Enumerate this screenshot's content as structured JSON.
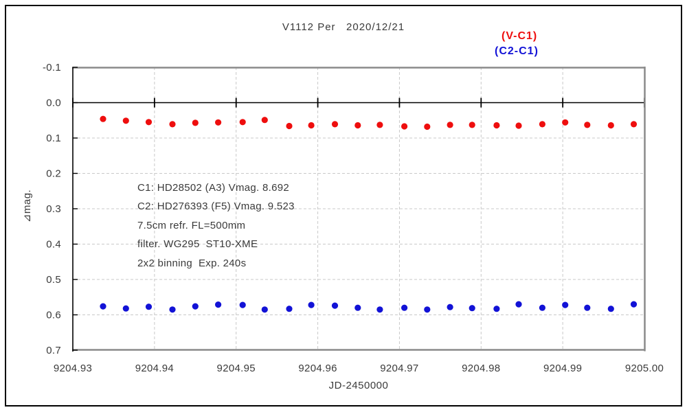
{
  "window": {
    "title": "V1112 Per   2020/12/21"
  },
  "legend": {
    "items": [
      {
        "label": "(V-C1)",
        "color": "#ee0e0e"
      },
      {
        "label": "(C2-C1)",
        "color": "#1212d6"
      }
    ]
  },
  "annotation": {
    "lines": [
      "C1: HD28502 (A3) Vmag. 8.692",
      "C2: HD276393 (F5) Vmag. 9.523",
      "7.5cm refr. FL=500mm",
      "filter. WG295  ST10-XME",
      "2x2 binning  Exp. 240s"
    ]
  },
  "chart_data": {
    "type": "scatter",
    "title": "V1112 Per 2020/12/21",
    "xlabel": "JD-2450000",
    "ylabel": "⊿mag.",
    "xlim": [
      9204.93,
      9205.0
    ],
    "ylim_top_to_bottom": [
      -0.1,
      0.7
    ],
    "y_axis_inverted_magnitude": true,
    "grid": true,
    "grid_style": "dashed",
    "legend_position": "top-right-outside",
    "xticks": [
      9204.93,
      9204.94,
      9204.95,
      9204.96,
      9204.97,
      9204.98,
      9204.99,
      9205.0
    ],
    "xtick_labels": [
      "9204.93",
      "9204.94",
      "9204.95",
      "9204.96",
      "9204.97",
      "9204.98",
      "9204.99",
      "9205.00"
    ],
    "yticks": [
      -0.1,
      0.0,
      0.1,
      0.2,
      0.3,
      0.4,
      0.5,
      0.6,
      0.7
    ],
    "ytick_labels": [
      "-0.1",
      "0.0",
      "0.1",
      "0.2",
      "0.3",
      "0.4",
      "0.5",
      "0.6",
      "0.7"
    ],
    "zero_axis_line": 0.0,
    "series": [
      {
        "name": "(V-C1)",
        "color": "#ee0e0e",
        "marker": "circle",
        "points": [
          [
            9204.9337,
            0.046
          ],
          [
            9204.9365,
            0.051
          ],
          [
            9204.9393,
            0.055
          ],
          [
            9204.9422,
            0.061
          ],
          [
            9204.945,
            0.057
          ],
          [
            9204.9478,
            0.056
          ],
          [
            9204.9508,
            0.055
          ],
          [
            9204.9535,
            0.049
          ],
          [
            9204.9565,
            0.066
          ],
          [
            9204.9592,
            0.064
          ],
          [
            9204.9621,
            0.061
          ],
          [
            9204.9649,
            0.064
          ],
          [
            9204.9676,
            0.063
          ],
          [
            9204.9706,
            0.067
          ],
          [
            9204.9734,
            0.068
          ],
          [
            9204.9762,
            0.063
          ],
          [
            9204.9789,
            0.063
          ],
          [
            9204.9819,
            0.064
          ],
          [
            9204.9846,
            0.065
          ],
          [
            9204.9875,
            0.061
          ],
          [
            9204.9903,
            0.056
          ],
          [
            9204.993,
            0.063
          ],
          [
            9204.9959,
            0.064
          ],
          [
            9204.9987,
            0.061
          ]
        ]
      },
      {
        "name": "(C2-C1)",
        "color": "#1212d6",
        "marker": "circle",
        "points": [
          [
            9204.9337,
            0.576
          ],
          [
            9204.9365,
            0.582
          ],
          [
            9204.9393,
            0.577
          ],
          [
            9204.9422,
            0.585
          ],
          [
            9204.945,
            0.576
          ],
          [
            9204.9478,
            0.571
          ],
          [
            9204.9508,
            0.572
          ],
          [
            9204.9535,
            0.585
          ],
          [
            9204.9565,
            0.583
          ],
          [
            9204.9592,
            0.572
          ],
          [
            9204.9621,
            0.574
          ],
          [
            9204.9649,
            0.58
          ],
          [
            9204.9676,
            0.585
          ],
          [
            9204.9706,
            0.58
          ],
          [
            9204.9734,
            0.585
          ],
          [
            9204.9762,
            0.578
          ],
          [
            9204.9789,
            0.581
          ],
          [
            9204.9819,
            0.583
          ],
          [
            9204.9846,
            0.57
          ],
          [
            9204.9875,
            0.58
          ],
          [
            9204.9903,
            0.572
          ],
          [
            9204.993,
            0.58
          ],
          [
            9204.9959,
            0.583
          ],
          [
            9204.9987,
            0.57
          ]
        ]
      }
    ],
    "colors": {
      "frame_gray": "#8a8a8a",
      "axis_black": "#000000",
      "grid_gray": "#c8c8c8",
      "text": "#3a3a3a"
    }
  }
}
